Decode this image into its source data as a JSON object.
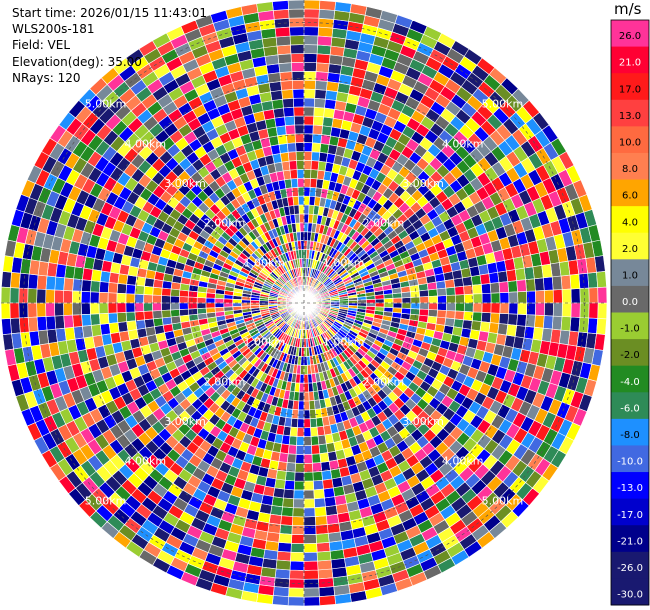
{
  "info": {
    "start_time": "Start time: 2026/01/15 11:43:01",
    "station": "WLS200s-181",
    "field": "Field: VEL",
    "elevation": "Elevation(deg): 35.00",
    "nrays": "NRays: 120"
  },
  "colorbar": {
    "unit": "m/s",
    "entries": [
      {
        "label": "26.0",
        "color": "#ff3399"
      },
      {
        "label": "21.0",
        "color": "#ff0033"
      },
      {
        "label": "17.0",
        "color": "#ff1a1a"
      },
      {
        "label": "13.0",
        "color": "#ff4040"
      },
      {
        "label": "10.0",
        "color": "#ff6a40"
      },
      {
        "label": "8.0",
        "color": "#ff7f50"
      },
      {
        "label": "6.0",
        "color": "#ffa500"
      },
      {
        "label": "4.0",
        "color": "#ffff00"
      },
      {
        "label": "2.0",
        "color": "#ffff33"
      },
      {
        "label": "1.0",
        "color": "#778899"
      },
      {
        "label": "0.0",
        "color": "#696969"
      },
      {
        "label": "-1.0",
        "color": "#9acd32"
      },
      {
        "label": "-2.0",
        "color": "#6b8e23"
      },
      {
        "label": "-4.0",
        "color": "#228b22"
      },
      {
        "label": "-6.0",
        "color": "#2e8b57"
      },
      {
        "label": "-8.0",
        "color": "#1e90ff"
      },
      {
        "label": "-10.0",
        "color": "#4169e1"
      },
      {
        "label": "-13.0",
        "color": "#0000ff"
      },
      {
        "label": "-17.0",
        "color": "#0000cd"
      },
      {
        "label": "-21.0",
        "color": "#00008b"
      },
      {
        "label": "-26.0",
        "color": "#191970"
      },
      {
        "label": "-30.0",
        "color": "#191970"
      }
    ]
  },
  "chart_data": {
    "type": "heatmap",
    "projection": "polar-ppi",
    "field": "VEL",
    "units": "m/s",
    "nrays": 120,
    "range_unit": "km",
    "range_rings_km": [
      1,
      2,
      3,
      4,
      5
    ],
    "ring_labels": [
      "1.00km",
      "2.00km",
      "3.00km",
      "4.00km",
      "5.00km"
    ],
    "max_range_km": 5.4,
    "value_range": [
      -30,
      30
    ],
    "grid": true
  }
}
